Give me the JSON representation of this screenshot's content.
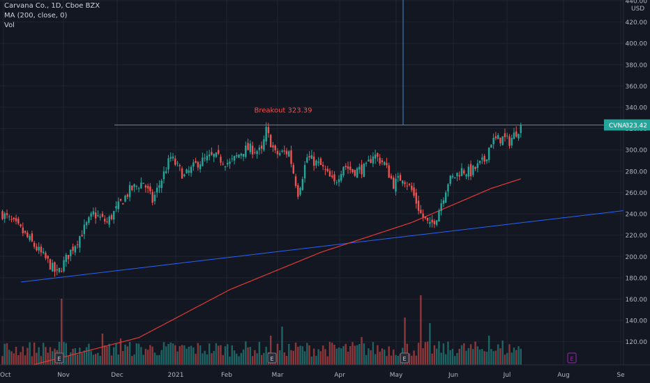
{
  "legend": {
    "title": "Carvana Co., 1D, Cboe BZX",
    "ma": "MA (200, close, 0)",
    "vol": "Vol"
  },
  "axis": {
    "currency": "USD"
  },
  "price_label": {
    "symbol": "CVNA",
    "value": "323.42"
  },
  "annotation": {
    "text": "Breakout 323.39"
  },
  "colors": {
    "background": "#131722",
    "up": "#26a69a",
    "down": "#ef5350",
    "ma": "#e53935",
    "trendline": "#2962ff",
    "earnings": "#9c27b0"
  },
  "chart_data": {
    "type": "candlestick",
    "ylim": [
      110,
      440
    ],
    "y_ticks": [
      120,
      140,
      160,
      180,
      200,
      220,
      240,
      260,
      280,
      300,
      320,
      340,
      360,
      380,
      400,
      420,
      440
    ],
    "x_ticks": [
      "Oct",
      "Nov",
      "Dec",
      "2021",
      "Feb",
      "Mar",
      "Apr",
      "May",
      "Jun",
      "Jul",
      "Aug",
      "Se"
    ],
    "breakout_level": 323.39,
    "last_price": 323.42,
    "earnings_markers": [
      "Nov",
      "Mar",
      "May",
      "Aug"
    ],
    "path_close": [
      [
        0,
        240
      ],
      [
        8,
        225
      ],
      [
        20,
        195
      ],
      [
        24,
        183
      ],
      [
        30,
        205
      ],
      [
        40,
        240
      ],
      [
        46,
        232
      ],
      [
        56,
        262
      ],
      [
        62,
        270
      ],
      [
        66,
        252
      ],
      [
        74,
        293
      ],
      [
        80,
        275
      ],
      [
        86,
        288
      ],
      [
        93,
        294
      ],
      [
        100,
        287
      ],
      [
        106,
        300
      ],
      [
        109,
        301
      ],
      [
        114,
        298
      ],
      [
        116,
        318
      ],
      [
        120,
        296
      ],
      [
        126,
        298
      ],
      [
        130,
        260
      ],
      [
        134,
        293
      ],
      [
        140,
        285
      ],
      [
        146,
        268
      ],
      [
        150,
        286
      ],
      [
        154,
        280
      ],
      [
        160,
        283
      ],
      [
        163,
        296
      ],
      [
        168,
        287
      ],
      [
        172,
        268
      ],
      [
        176,
        275
      ],
      [
        180,
        262
      ],
      [
        184,
        240
      ],
      [
        188,
        228
      ],
      [
        191,
        238
      ],
      [
        196,
        270
      ],
      [
        202,
        281
      ],
      [
        206,
        279
      ],
      [
        212,
        290
      ],
      [
        215,
        308
      ],
      [
        220,
        311
      ],
      [
        223,
        308
      ],
      [
        228,
        323
      ]
    ],
    "ma200_start_value": 117,
    "trendline": {
      "start_value": 176,
      "end_value": 243
    }
  }
}
